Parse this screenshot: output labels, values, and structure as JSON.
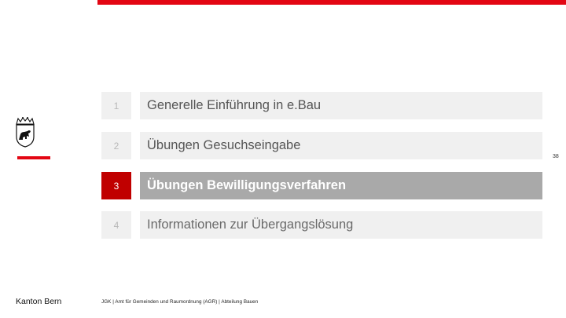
{
  "header": {
    "accent_color": "#e30613"
  },
  "logo": {
    "icon": "bern-bear-crest-icon"
  },
  "agenda": [
    {
      "number": "1",
      "title": "Generelle Einführung in e.Bau",
      "state": "done"
    },
    {
      "number": "2",
      "title": "Übungen Gesuchseingabe",
      "state": "done"
    },
    {
      "number": "3",
      "title": "Übungen Bewilligungsverfahren",
      "state": "active"
    },
    {
      "number": "4",
      "title": "Informationen zur Übergangslösung",
      "state": "upcoming"
    }
  ],
  "page_number": "38",
  "footer": {
    "left": "Kanton Bern",
    "text": "JGK | Amt für Gemeinden und Raumordnung (AGR) | Abteilung Bauen"
  },
  "colors": {
    "active_number_bg": "#c00000",
    "active_title_bg": "#a9a9a9",
    "row_bg": "#f0f0f0"
  }
}
